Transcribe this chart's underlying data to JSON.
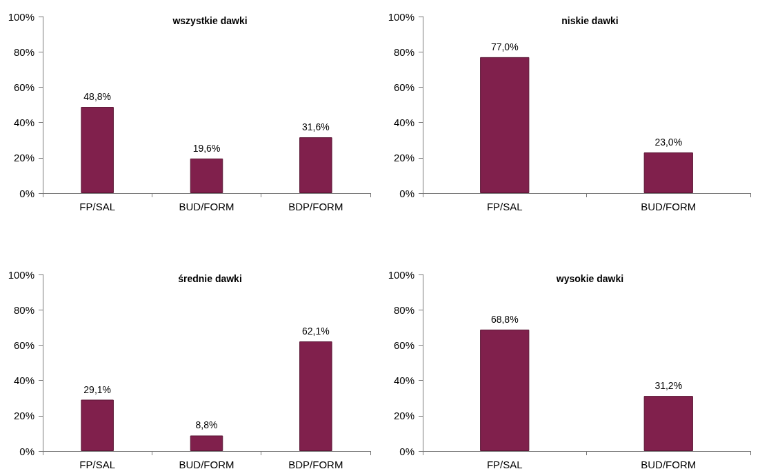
{
  "chart_data": [
    {
      "type": "bar",
      "title": "wszystkie dawki",
      "categories": [
        "FP/SAL",
        "BUD/FORM",
        "BDP/FORM"
      ],
      "values": [
        48.8,
        19.6,
        31.6
      ],
      "value_labels": [
        "48,8%",
        "19,6%",
        "31,6%"
      ],
      "color": "#80204c",
      "ylim": [
        0,
        100
      ],
      "yticks": [
        {
          "value": 0,
          "label": "0%"
        },
        {
          "value": 20,
          "label": "20%"
        },
        {
          "value": 40,
          "label": "40%"
        },
        {
          "value": 60,
          "label": "60%"
        },
        {
          "value": 80,
          "label": "80%"
        },
        {
          "value": 100,
          "label": "100%"
        }
      ]
    },
    {
      "type": "bar",
      "title": "niskie dawki",
      "categories": [
        "FP/SAL",
        "BUD/FORM"
      ],
      "values": [
        77.0,
        23.0
      ],
      "value_labels": [
        "77,0%",
        "23,0%"
      ],
      "color": "#80204c",
      "ylim": [
        0,
        100
      ],
      "yticks": [
        {
          "value": 0,
          "label": "0%"
        },
        {
          "value": 20,
          "label": "20%"
        },
        {
          "value": 40,
          "label": "40%"
        },
        {
          "value": 60,
          "label": "60%"
        },
        {
          "value": 80,
          "label": "80%"
        },
        {
          "value": 100,
          "label": "100%"
        }
      ]
    },
    {
      "type": "bar",
      "title": "średnie dawki",
      "categories": [
        "FP/SAL",
        "BUD/FORM",
        "BDP/FORM"
      ],
      "values": [
        29.1,
        8.8,
        62.1
      ],
      "value_labels": [
        "29,1%",
        "8,8%",
        "62,1%"
      ],
      "color": "#80204c",
      "ylim": [
        0,
        100
      ],
      "yticks": [
        {
          "value": 0,
          "label": "0%"
        },
        {
          "value": 20,
          "label": "20%"
        },
        {
          "value": 40,
          "label": "40%"
        },
        {
          "value": 60,
          "label": "60%"
        },
        {
          "value": 80,
          "label": "80%"
        },
        {
          "value": 100,
          "label": "100%"
        }
      ]
    },
    {
      "type": "bar",
      "title": "wysokie dawki",
      "categories": [
        "FP/SAL",
        "BUD/FORM"
      ],
      "values": [
        68.8,
        31.2
      ],
      "value_labels": [
        "68,8%",
        "31,2%"
      ],
      "color": "#80204c",
      "ylim": [
        0,
        100
      ],
      "yticks": [
        {
          "value": 0,
          "label": "0%"
        },
        {
          "value": 20,
          "label": "20%"
        },
        {
          "value": 40,
          "label": "40%"
        },
        {
          "value": 60,
          "label": "60%"
        },
        {
          "value": 80,
          "label": "80%"
        },
        {
          "value": 100,
          "label": "100%"
        }
      ]
    }
  ]
}
